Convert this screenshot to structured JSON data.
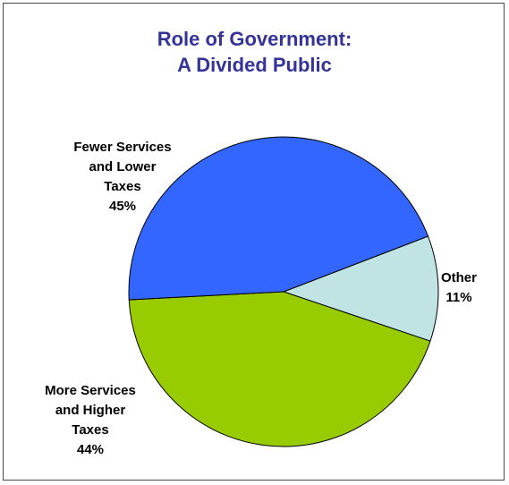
{
  "title_line1": "Role of Government:",
  "title_line2": "A Divided Public",
  "chart_data": {
    "type": "pie",
    "title": "Role of Government: A Divided Public",
    "slices": [
      {
        "label_lines": [
          "Other"
        ],
        "value": 11,
        "value_label": "11%",
        "color": "#C0E4E4"
      },
      {
        "label_lines": [
          "More Services",
          "and Higher",
          "Taxes"
        ],
        "value": 44,
        "value_label": "44%",
        "color": "#99CC00"
      },
      {
        "label_lines": [
          "Fewer Services",
          "and Lower",
          "Taxes"
        ],
        "value": 45,
        "value_label": "45%",
        "color": "#3366FF"
      }
    ],
    "start_angle_deg": -21,
    "direction": "clockwise",
    "slice_border": "#000000"
  }
}
